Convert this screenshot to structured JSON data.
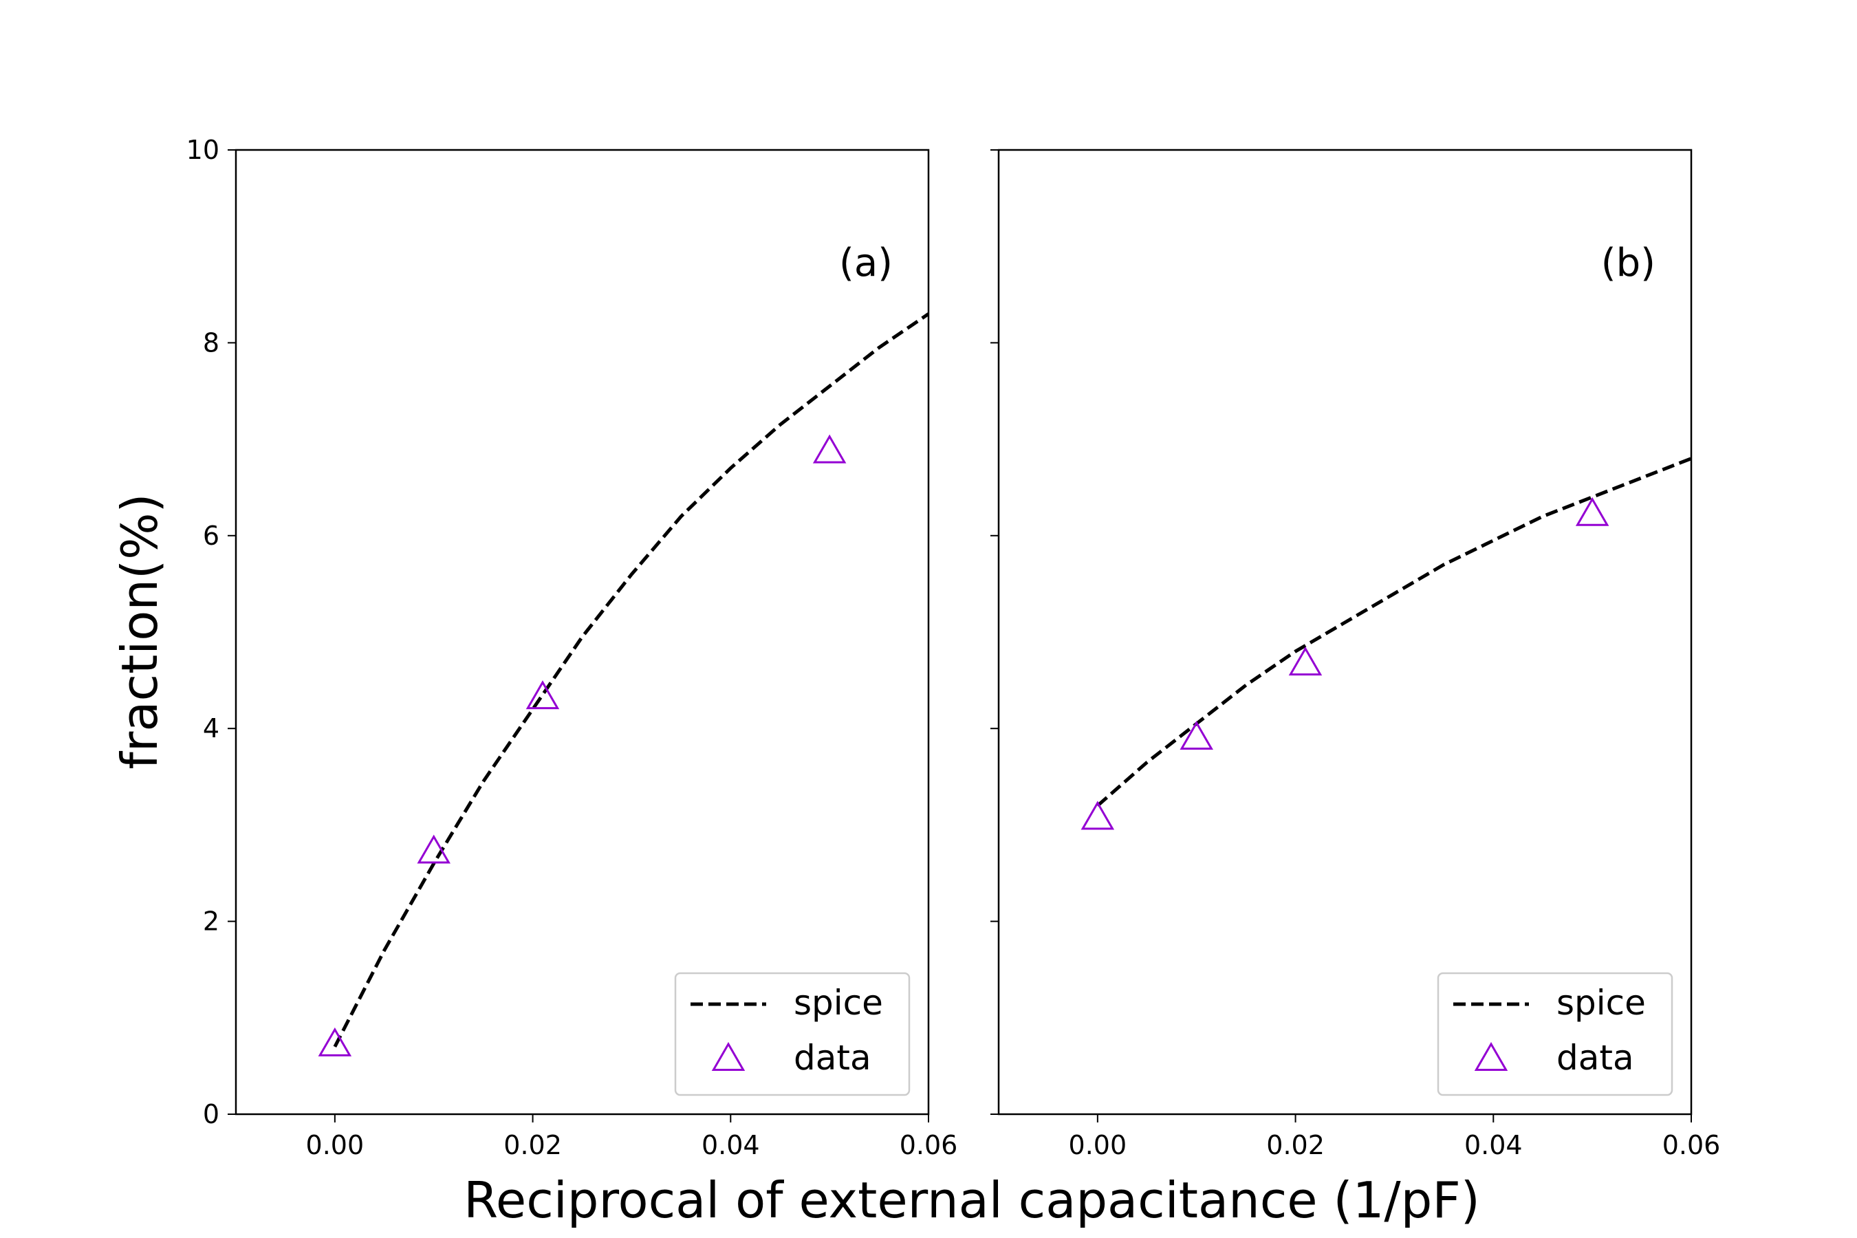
{
  "figure": {
    "ylabel": "fraction(%)",
    "xlabel": "Reciprocal of external capacitance (1/pF)"
  },
  "colors": {
    "spice": "#000000",
    "data": "#9400d3",
    "axes": "#000000",
    "legend_border": "#cccccc"
  },
  "chart_data": [
    {
      "type": "line",
      "panel_label": "(a)",
      "xlim": [
        -0.01,
        0.06
      ],
      "ylim": [
        0,
        10
      ],
      "xticks": [
        "0.00",
        "0.02",
        "0.04",
        "0.06"
      ],
      "xtick_values": [
        0.0,
        0.02,
        0.04,
        0.06
      ],
      "yticks": [
        "0",
        "2",
        "4",
        "6",
        "8",
        "10"
      ],
      "ytick_values": [
        0,
        2,
        4,
        6,
        8,
        10
      ],
      "legend_position": "lower-right",
      "series": [
        {
          "name": "spice",
          "style": "dashed-line",
          "x": [
            0.0,
            0.005,
            0.01,
            0.015,
            0.02,
            0.025,
            0.03,
            0.035,
            0.04,
            0.045,
            0.05,
            0.055,
            0.06
          ],
          "y": [
            0.7,
            1.7,
            2.6,
            3.45,
            4.2,
            4.95,
            5.6,
            6.2,
            6.7,
            7.15,
            7.55,
            7.95,
            8.3
          ]
        },
        {
          "name": "data",
          "style": "open-triangle",
          "x": [
            0.0,
            0.01,
            0.021,
            0.05
          ],
          "y": [
            0.7,
            2.7,
            4.3,
            6.85
          ]
        }
      ]
    },
    {
      "type": "line",
      "panel_label": "(b)",
      "xlim": [
        -0.01,
        0.06
      ],
      "ylim": [
        0,
        10
      ],
      "xticks": [
        "0.00",
        "0.02",
        "0.04",
        "0.06"
      ],
      "xtick_values": [
        0.0,
        0.02,
        0.04,
        0.06
      ],
      "yticks": [],
      "ytick_values": [
        0,
        2,
        4,
        6,
        8,
        10
      ],
      "legend_position": "lower-right",
      "series": [
        {
          "name": "spice",
          "style": "dashed-line",
          "x": [
            0.0,
            0.005,
            0.01,
            0.015,
            0.02,
            0.025,
            0.03,
            0.035,
            0.04,
            0.045,
            0.05,
            0.055,
            0.06
          ],
          "y": [
            3.2,
            3.65,
            4.05,
            4.45,
            4.8,
            5.1,
            5.4,
            5.7,
            5.95,
            6.2,
            6.4,
            6.6,
            6.8
          ]
        },
        {
          "name": "data",
          "style": "open-triangle",
          "x": [
            0.0,
            0.01,
            0.021,
            0.05
          ],
          "y": [
            3.05,
            3.88,
            4.65,
            6.2
          ]
        }
      ]
    }
  ]
}
